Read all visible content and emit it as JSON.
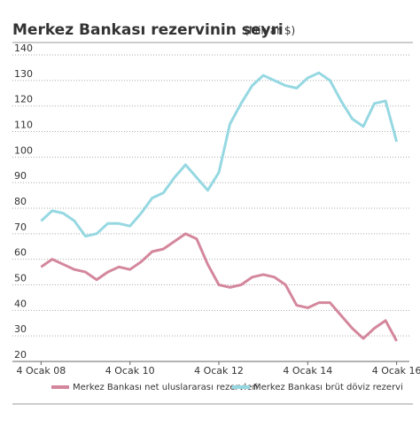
{
  "chart_data": {
    "type": "line",
    "title": "Merkez Bankası rezervinin seyri",
    "subtitle": "(Milyar $)",
    "x": [
      "2008-01",
      "2008-04",
      "2008-07",
      "2008-10",
      "2009-01",
      "2009-04",
      "2009-07",
      "2009-10",
      "2010-01",
      "2010-04",
      "2010-07",
      "2010-10",
      "2011-01",
      "2011-04",
      "2011-07",
      "2011-10",
      "2012-01",
      "2012-04",
      "2012-07",
      "2012-10",
      "2013-01",
      "2013-04",
      "2013-07",
      "2013-10",
      "2014-01",
      "2014-04",
      "2014-07",
      "2014-10",
      "2015-01",
      "2015-04",
      "2015-07",
      "2015-10",
      "2016-01"
    ],
    "series": [
      {
        "name": "Merkez Bankası net uluslararası rezervleri",
        "color": "#d4879c",
        "values": [
          57,
          60,
          58,
          56,
          55,
          52,
          55,
          57,
          56,
          59,
          63,
          64,
          67,
          70,
          68,
          58,
          50,
          49,
          50,
          53,
          54,
          53,
          50,
          42,
          41,
          43,
          43,
          38,
          33,
          29,
          33,
          36,
          28
        ]
      },
      {
        "name": "Merkez Bankası brüt döviz rezervi",
        "color": "#96d8e2",
        "values": [
          75,
          79,
          78,
          75,
          69,
          70,
          74,
          74,
          73,
          78,
          84,
          86,
          92,
          97,
          92,
          87,
          94,
          113,
          121,
          128,
          132,
          130,
          128,
          127,
          131,
          133,
          130,
          122,
          115,
          112,
          121,
          122,
          106
        ]
      }
    ],
    "ylim": [
      20,
      140
    ],
    "yticks": [
      20,
      30,
      40,
      50,
      60,
      70,
      80,
      90,
      100,
      110,
      120,
      130,
      140
    ],
    "xlim": [
      "2007-11",
      "2016-03"
    ],
    "xticks": [
      {
        "value": "2008-01",
        "label": "4 Ocak 08"
      },
      {
        "value": "2010-01",
        "label": "4 Ocak 10"
      },
      {
        "value": "2012-01",
        "label": "4 Ocak 12"
      },
      {
        "value": "2014-01",
        "label": "4 Ocak 14"
      },
      {
        "value": "2016-01",
        "label": "4 Ocak 16"
      }
    ],
    "grid": true,
    "legend": "bottom"
  }
}
